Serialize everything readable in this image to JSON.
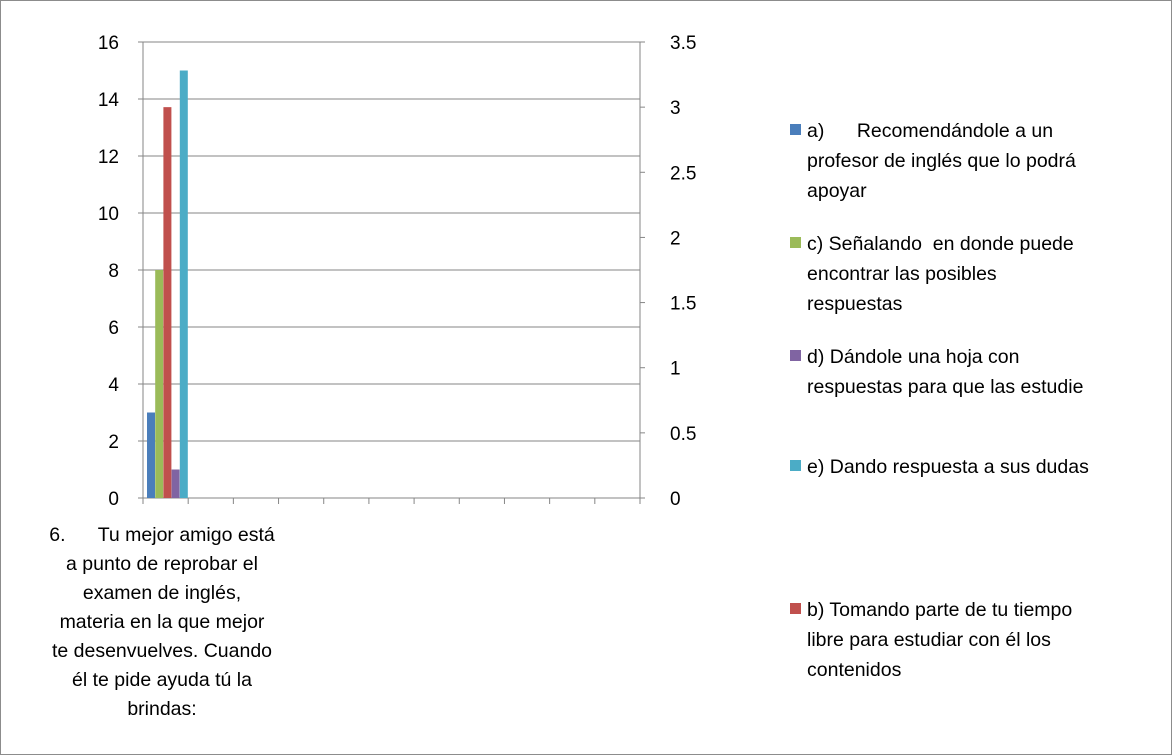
{
  "chart_data": {
    "type": "bar",
    "title": "",
    "categories": [
      "6.\tTu mejor amigo está a punto de reprobar el examen de inglés, materia en la que mejor te desenvuelves. Cuando él te pide ayuda tú la brindas:"
    ],
    "series": [
      {
        "name": "a)\tRecomendándole a un profesor de inglés que lo podrá apoyar",
        "values": [
          3
        ],
        "color": "#4a7ebb",
        "axis": "left"
      },
      {
        "name": "c) Señalando  en donde puede encontrar las posibles respuestas",
        "values": [
          8
        ],
        "color": "#9bbb59",
        "axis": "left"
      },
      {
        "name": "b) Tomando parte de tu tiempo libre para estudiar con él los contenidos",
        "values": [
          3
        ],
        "color": "#c0504d",
        "axis": "right"
      },
      {
        "name": "d) Dándole una hoja con respuestas para que las estudie",
        "values": [
          1
        ],
        "color": "#8064a2",
        "axis": "left"
      },
      {
        "name": "e) Dando respuesta a sus dudas",
        "values": [
          15
        ],
        "color": "#4bacc6",
        "axis": "left"
      }
    ],
    "left_axis": {
      "min": 0,
      "max": 16,
      "step": 2,
      "ticks": [
        "0",
        "2",
        "4",
        "6",
        "8",
        "10",
        "12",
        "14",
        "16"
      ]
    },
    "right_axis": {
      "min": 0,
      "max": 3.5,
      "step": 0.5,
      "ticks": [
        "0",
        "0.5",
        "1",
        "1.5",
        "2",
        "2.5",
        "3",
        "3.5"
      ]
    },
    "x_divisions": 11,
    "grid": true,
    "legend_position": "right",
    "legend_order": [
      0,
      1,
      3,
      4,
      2
    ]
  },
  "category_label": {
    "line1": "6.      Tu mejor amigo está",
    "line2": "a punto de reprobar el",
    "line3": "examen de inglés,",
    "line4": "materia en la que mejor",
    "line5": "te desenvuelves. Cuando",
    "line6": "él te pide ayuda tú la",
    "line7": "brindas:"
  },
  "legend": {
    "a_line1": "a)      Recomendándole a un",
    "a_line2": "profesor de inglés que lo podrá",
    "a_line3": "apoyar",
    "c_line1": "c) Señalando  en donde puede",
    "c_line2": "encontrar las posibles",
    "c_line3": "respuestas",
    "d_line1": "d) Dándole una hoja con",
    "d_line2": "respuestas para que las estudie",
    "e_line1": "e) Dando respuesta a sus dudas",
    "b_line1": "b) Tomando parte de tu tiempo",
    "b_line2": "libre para estudiar con él los",
    "b_line3": "contenidos"
  }
}
